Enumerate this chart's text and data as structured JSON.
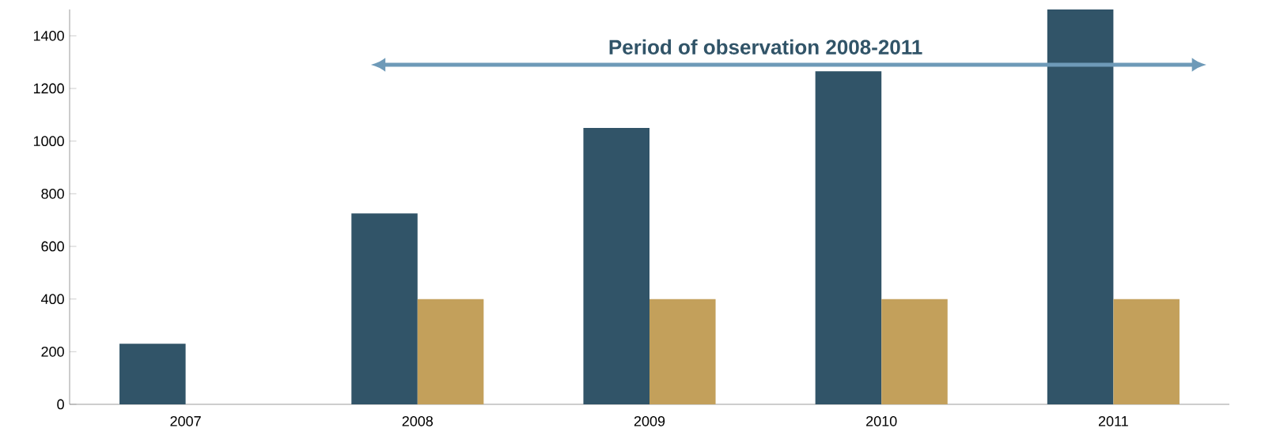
{
  "chart_data": {
    "type": "bar",
    "categories": [
      "2007",
      "2008",
      "2009",
      "2010",
      "2011"
    ],
    "series": [
      {
        "color": "#315468",
        "values": [
          230,
          725,
          1050,
          1265,
          1500
        ]
      },
      {
        "color": "#c3a05b",
        "values": [
          null,
          400,
          400,
          400,
          400
        ]
      }
    ],
    "ylim": [
      0,
      1500
    ],
    "yticks": [
      0,
      200,
      400,
      600,
      800,
      1000,
      1200,
      1400
    ],
    "grid": false,
    "annotations": [
      "**Period of observation 2008-2011**"
    ]
  }
}
